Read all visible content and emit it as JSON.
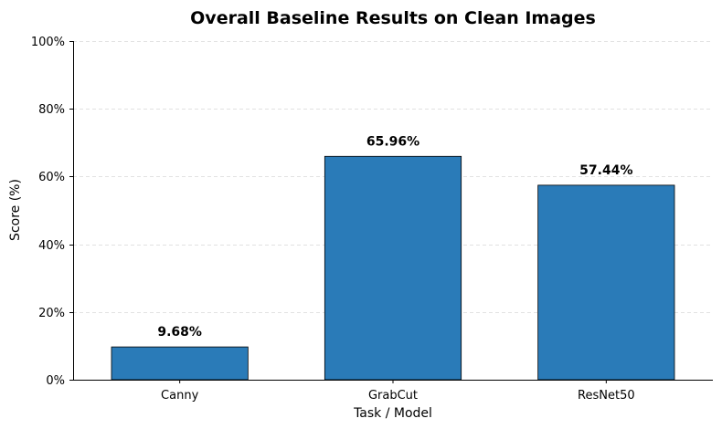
{
  "chart_data": {
    "type": "bar",
    "title": "Overall Baseline Results on Clean Images",
    "xlabel": "Task / Model",
    "ylabel": "Score (%)",
    "categories": [
      "Canny",
      "GrabCut",
      "ResNet50"
    ],
    "values": [
      9.68,
      65.96,
      57.44
    ],
    "data_labels": [
      "9.68%",
      "65.96%",
      "57.44%"
    ],
    "ylim": [
      0,
      100
    ],
    "yticks": [
      0,
      20,
      40,
      60,
      80,
      100
    ],
    "ytick_labels": [
      "0%",
      "20%",
      "40%",
      "60%",
      "80%",
      "100%"
    ],
    "grid": true,
    "bar_color": "#2a7bb8"
  }
}
